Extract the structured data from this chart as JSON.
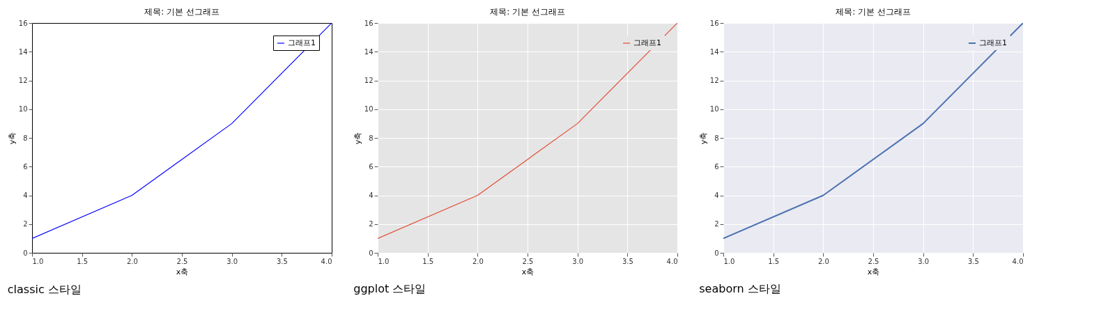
{
  "chart_data": [
    {
      "type": "line",
      "title": "제목: 기본 선그래프",
      "xlabel": "x축",
      "ylabel": "y축",
      "x": [
        1,
        2,
        3,
        4
      ],
      "series": [
        {
          "name": "그래프1",
          "color": "#0000ff",
          "values": [
            1,
            4,
            9,
            16
          ]
        }
      ],
      "xlim": [
        1,
        4
      ],
      "xticks": [
        {
          "value": 1,
          "label": "1.0"
        },
        {
          "value": 1.5,
          "label": "1.5"
        },
        {
          "value": 2,
          "label": "2.0"
        },
        {
          "value": 2.5,
          "label": "2.5"
        },
        {
          "value": 3,
          "label": "3.0"
        },
        {
          "value": 3.5,
          "label": "3.5"
        },
        {
          "value": 4,
          "label": "4.0"
        }
      ],
      "ylim": [
        0,
        16
      ],
      "yticks": [
        0,
        2,
        4,
        6,
        8,
        10,
        12,
        14,
        16
      ],
      "grid": false,
      "legend": "top right",
      "annotations": [
        "classic 스타일"
      ]
    },
    {
      "type": "line",
      "title": "제목: 기본 선그래프",
      "xlabel": "x축",
      "ylabel": "y축",
      "x": [
        1,
        2,
        3,
        4
      ],
      "series": [
        {
          "name": "그래프1",
          "color": "#e24a33",
          "values": [
            1,
            4,
            9,
            16
          ]
        }
      ],
      "xlim": [
        1,
        4
      ],
      "xticks": [
        {
          "value": 1,
          "label": "1.0"
        },
        {
          "value": 1.5,
          "label": "1.5"
        },
        {
          "value": 2,
          "label": "2.0"
        },
        {
          "value": 2.5,
          "label": "2.5"
        },
        {
          "value": 3,
          "label": "3.0"
        },
        {
          "value": 3.5,
          "label": "3.5"
        },
        {
          "value": 4,
          "label": "4.0"
        }
      ],
      "ylim": [
        0,
        16
      ],
      "yticks": [
        0,
        2,
        4,
        6,
        8,
        10,
        12,
        14,
        16
      ],
      "grid": true,
      "legend": "top right",
      "annotations": [
        "ggplot 스타일"
      ]
    },
    {
      "type": "line",
      "title": "제목: 기본 선그래프",
      "xlabel": "x축",
      "ylabel": "y축",
      "x": [
        1,
        2,
        3,
        4
      ],
      "series": [
        {
          "name": "그래프1",
          "color": "#4c72b0",
          "values": [
            1,
            4,
            9,
            16
          ]
        }
      ],
      "xlim": [
        1,
        4
      ],
      "xticks": [
        {
          "value": 1,
          "label": "1.0"
        },
        {
          "value": 1.5,
          "label": "1.5"
        },
        {
          "value": 2,
          "label": "2.0"
        },
        {
          "value": 2.5,
          "label": "2.5"
        },
        {
          "value": 3,
          "label": "3.0"
        },
        {
          "value": 3.5,
          "label": "3.5"
        },
        {
          "value": 4,
          "label": "4.0"
        }
      ],
      "ylim": [
        0,
        16
      ],
      "yticks": [
        0,
        2,
        4,
        6,
        8,
        10,
        12,
        14,
        16
      ],
      "grid": true,
      "legend": "top right",
      "annotations": [
        "seaborn 스타일"
      ]
    }
  ]
}
